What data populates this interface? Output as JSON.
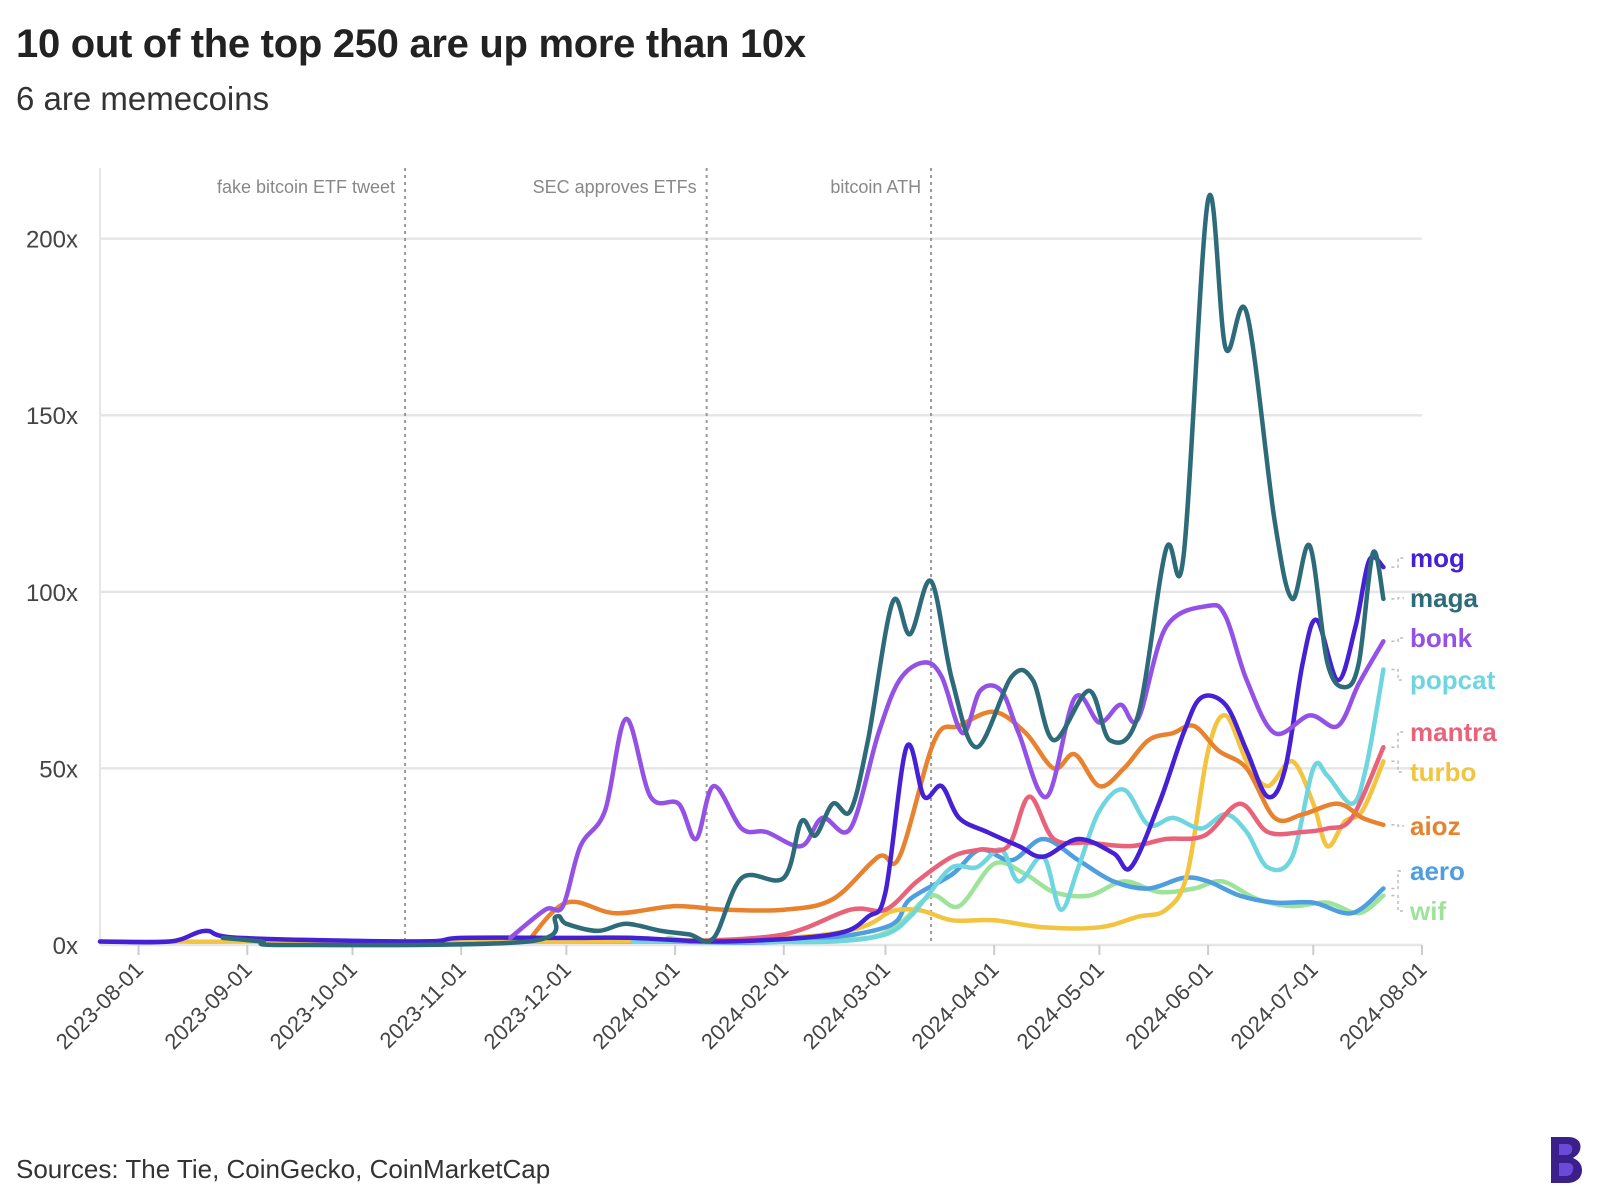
{
  "title": "10 out of the top 250 are up more than 10x",
  "subtitle": "6 are memecoins",
  "source": "Sources: The Tie, CoinGecko, CoinMarketCap",
  "logo_icon": "block-b-logo-icon",
  "chart_data": {
    "type": "line",
    "title": "10 out of the top 250 are up more than 10x",
    "subtitle": "6 are memecoins",
    "xlabel": "",
    "ylabel": "",
    "xlim": [
      "2023-07-21",
      "2024-08-01"
    ],
    "ylim": [
      0,
      220
    ],
    "y_ticks": [
      {
        "value": 0,
        "label": "0x"
      },
      {
        "value": 50,
        "label": "50x"
      },
      {
        "value": 100,
        "label": "100x"
      },
      {
        "value": 150,
        "label": "150x"
      },
      {
        "value": 200,
        "label": "200x"
      }
    ],
    "x_ticks": [
      "2023-08-01",
      "2023-09-01",
      "2023-10-01",
      "2023-11-01",
      "2023-12-01",
      "2024-01-01",
      "2024-02-01",
      "2024-03-01",
      "2024-04-01",
      "2024-05-01",
      "2024-06-01",
      "2024-07-01",
      "2024-08-01"
    ],
    "grid": "horizontal",
    "annotations": [
      {
        "date": "2023-10-16",
        "label": "fake bitcoin ETF tweet"
      },
      {
        "date": "2024-01-10",
        "label": "SEC approves ETFs"
      },
      {
        "date": "2024-03-14",
        "label": "bitcoin ATH"
      }
    ],
    "series": [
      {
        "name": "mog",
        "label": "mog",
        "color": "#4520d4",
        "points": [
          [
            "2023-07-21",
            1
          ],
          [
            "2023-08-10",
            1
          ],
          [
            "2023-08-20",
            4
          ],
          [
            "2023-08-30",
            2
          ],
          [
            "2023-10-20",
            1
          ],
          [
            "2023-11-01",
            2
          ],
          [
            "2023-12-01",
            2
          ],
          [
            "2023-12-20",
            2
          ],
          [
            "2024-01-15",
            1
          ],
          [
            "2024-02-15",
            3
          ],
          [
            "2024-02-25",
            8
          ],
          [
            "2024-03-01",
            15
          ],
          [
            "2024-03-07",
            56
          ],
          [
            "2024-03-12",
            42
          ],
          [
            "2024-03-17",
            45
          ],
          [
            "2024-03-22",
            36
          ],
          [
            "2024-03-30",
            32
          ],
          [
            "2024-04-08",
            28
          ],
          [
            "2024-04-15",
            25
          ],
          [
            "2024-04-25",
            30
          ],
          [
            "2024-05-05",
            26
          ],
          [
            "2024-05-10",
            22
          ],
          [
            "2024-05-18",
            40
          ],
          [
            "2024-05-25",
            60
          ],
          [
            "2024-05-30",
            70
          ],
          [
            "2024-06-06",
            68
          ],
          [
            "2024-06-12",
            55
          ],
          [
            "2024-06-18",
            42
          ],
          [
            "2024-06-23",
            50
          ],
          [
            "2024-06-28",
            80
          ],
          [
            "2024-07-02",
            92
          ],
          [
            "2024-07-08",
            75
          ],
          [
            "2024-07-13",
            90
          ],
          [
            "2024-07-17",
            109
          ],
          [
            "2024-07-21",
            107
          ]
        ]
      },
      {
        "name": "maga",
        "label": "maga",
        "color": "#2e6b7a",
        "points": [
          [
            "2023-08-25",
            2
          ],
          [
            "2023-09-05",
            1
          ],
          [
            "2023-09-12",
            0
          ],
          [
            "2023-11-20",
            1
          ],
          [
            "2023-11-28",
            8
          ],
          [
            "2023-12-01",
            6
          ],
          [
            "2023-12-10",
            4
          ],
          [
            "2023-12-18",
            6
          ],
          [
            "2023-12-28",
            4
          ],
          [
            "2024-01-05",
            3
          ],
          [
            "2024-01-12",
            2
          ],
          [
            "2024-01-20",
            19
          ],
          [
            "2024-02-01",
            19
          ],
          [
            "2024-02-06",
            35
          ],
          [
            "2024-02-10",
            31
          ],
          [
            "2024-02-15",
            40
          ],
          [
            "2024-02-20",
            38
          ],
          [
            "2024-02-25",
            58
          ],
          [
            "2024-03-03",
            97
          ],
          [
            "2024-03-08",
            88
          ],
          [
            "2024-03-14",
            103
          ],
          [
            "2024-03-20",
            75
          ],
          [
            "2024-03-27",
            56
          ],
          [
            "2024-04-06",
            76
          ],
          [
            "2024-04-12",
            75
          ],
          [
            "2024-04-18",
            58
          ],
          [
            "2024-04-28",
            72
          ],
          [
            "2024-05-04",
            58
          ],
          [
            "2024-05-12",
            65
          ],
          [
            "2024-05-20",
            112
          ],
          [
            "2024-05-25",
            110
          ],
          [
            "2024-06-01",
            211
          ],
          [
            "2024-06-06",
            169
          ],
          [
            "2024-06-12",
            179
          ],
          [
            "2024-06-20",
            120
          ],
          [
            "2024-06-25",
            98
          ],
          [
            "2024-06-30",
            113
          ],
          [
            "2024-07-05",
            80
          ],
          [
            "2024-07-10",
            73
          ],
          [
            "2024-07-14",
            80
          ],
          [
            "2024-07-18",
            111
          ],
          [
            "2024-07-21",
            98
          ]
        ]
      },
      {
        "name": "bonk",
        "label": "bonk",
        "color": "#9451e6",
        "points": [
          [
            "2023-11-15",
            2
          ],
          [
            "2023-11-25",
            10
          ],
          [
            "2023-11-30",
            11
          ],
          [
            "2023-12-05",
            28
          ],
          [
            "2023-12-12",
            38
          ],
          [
            "2023-12-18",
            64
          ],
          [
            "2023-12-25",
            42
          ],
          [
            "2024-01-02",
            40
          ],
          [
            "2024-01-07",
            30
          ],
          [
            "2024-01-12",
            45
          ],
          [
            "2024-01-20",
            33
          ],
          [
            "2024-01-27",
            32
          ],
          [
            "2024-02-06",
            28
          ],
          [
            "2024-02-12",
            36
          ],
          [
            "2024-02-20",
            33
          ],
          [
            "2024-02-28",
            60
          ],
          [
            "2024-03-05",
            75
          ],
          [
            "2024-03-12",
            80
          ],
          [
            "2024-03-17",
            76
          ],
          [
            "2024-03-23",
            60
          ],
          [
            "2024-03-28",
            72
          ],
          [
            "2024-04-03",
            72
          ],
          [
            "2024-04-08",
            60
          ],
          [
            "2024-04-16",
            42
          ],
          [
            "2024-04-24",
            70
          ],
          [
            "2024-05-01",
            63
          ],
          [
            "2024-05-07",
            68
          ],
          [
            "2024-05-12",
            64
          ],
          [
            "2024-05-20",
            90
          ],
          [
            "2024-06-01",
            96
          ],
          [
            "2024-06-06",
            93
          ],
          [
            "2024-06-12",
            75
          ],
          [
            "2024-06-20",
            60
          ],
          [
            "2024-06-30",
            65
          ],
          [
            "2024-07-08",
            62
          ],
          [
            "2024-07-14",
            74
          ],
          [
            "2024-07-21",
            86
          ]
        ]
      },
      {
        "name": "popcat",
        "label": "popcat",
        "color": "#6fd6e0",
        "points": [
          [
            "2023-12-20",
            1
          ],
          [
            "2024-01-01",
            1
          ],
          [
            "2024-01-20",
            1
          ],
          [
            "2024-02-15",
            1
          ],
          [
            "2024-03-01",
            3
          ],
          [
            "2024-03-08",
            8
          ],
          [
            "2024-03-13",
            14
          ],
          [
            "2024-03-20",
            22
          ],
          [
            "2024-03-27",
            22
          ],
          [
            "2024-04-03",
            27
          ],
          [
            "2024-04-08",
            18
          ],
          [
            "2024-04-15",
            25
          ],
          [
            "2024-04-20",
            10
          ],
          [
            "2024-04-25",
            22
          ],
          [
            "2024-05-01",
            38
          ],
          [
            "2024-05-08",
            44
          ],
          [
            "2024-05-15",
            34
          ],
          [
            "2024-05-22",
            36
          ],
          [
            "2024-05-30",
            33
          ],
          [
            "2024-06-06",
            37
          ],
          [
            "2024-06-12",
            32
          ],
          [
            "2024-06-18",
            22
          ],
          [
            "2024-06-25",
            25
          ],
          [
            "2024-07-01",
            50
          ],
          [
            "2024-07-05",
            48
          ],
          [
            "2024-07-12",
            40
          ],
          [
            "2024-07-16",
            50
          ],
          [
            "2024-07-21",
            78
          ]
        ]
      },
      {
        "name": "mantra",
        "label": "mantra",
        "color": "#e8637a",
        "points": [
          [
            "2024-01-05",
            1
          ],
          [
            "2024-02-01",
            3
          ],
          [
            "2024-02-20",
            10
          ],
          [
            "2024-03-01",
            10
          ],
          [
            "2024-03-10",
            18
          ],
          [
            "2024-03-20",
            25
          ],
          [
            "2024-03-28",
            27
          ],
          [
            "2024-04-05",
            28
          ],
          [
            "2024-04-11",
            42
          ],
          [
            "2024-04-18",
            30
          ],
          [
            "2024-04-28",
            29
          ],
          [
            "2024-05-10",
            28
          ],
          [
            "2024-05-20",
            30
          ],
          [
            "2024-05-31",
            31
          ],
          [
            "2024-06-10",
            40
          ],
          [
            "2024-06-18",
            32
          ],
          [
            "2024-06-28",
            32
          ],
          [
            "2024-07-05",
            33
          ],
          [
            "2024-07-12",
            36
          ],
          [
            "2024-07-21",
            56
          ]
        ]
      },
      {
        "name": "turbo",
        "label": "turbo",
        "color": "#f2c440",
        "points": [
          [
            "2023-07-21",
            1
          ],
          [
            "2023-08-15",
            1
          ],
          [
            "2023-09-01",
            1
          ],
          [
            "2024-02-01",
            2
          ],
          [
            "2024-03-05",
            10
          ],
          [
            "2024-03-20",
            7
          ],
          [
            "2024-04-01",
            7
          ],
          [
            "2024-04-15",
            5
          ],
          [
            "2024-05-01",
            5
          ],
          [
            "2024-05-12",
            8
          ],
          [
            "2024-05-20",
            10
          ],
          [
            "2024-05-26",
            20
          ],
          [
            "2024-06-01",
            55
          ],
          [
            "2024-06-06",
            65
          ],
          [
            "2024-06-12",
            52
          ],
          [
            "2024-06-18",
            45
          ],
          [
            "2024-06-25",
            52
          ],
          [
            "2024-07-01",
            40
          ],
          [
            "2024-07-05",
            28
          ],
          [
            "2024-07-10",
            35
          ],
          [
            "2024-07-15",
            38
          ],
          [
            "2024-07-21",
            52
          ]
        ]
      },
      {
        "name": "aioz",
        "label": "aioz",
        "color": "#e8822e",
        "points": [
          [
            "2023-11-20",
            1
          ],
          [
            "2023-12-01",
            12
          ],
          [
            "2023-12-15",
            9
          ],
          [
            "2024-01-01",
            11
          ],
          [
            "2024-01-15",
            10
          ],
          [
            "2024-02-01",
            10
          ],
          [
            "2024-02-15",
            13
          ],
          [
            "2024-02-28",
            25
          ],
          [
            "2024-03-05",
            25
          ],
          [
            "2024-03-15",
            58
          ],
          [
            "2024-03-22",
            62
          ],
          [
            "2024-04-01",
            66
          ],
          [
            "2024-04-10",
            60
          ],
          [
            "2024-04-18",
            50
          ],
          [
            "2024-04-24",
            54
          ],
          [
            "2024-05-01",
            45
          ],
          [
            "2024-05-08",
            50
          ],
          [
            "2024-05-15",
            58
          ],
          [
            "2024-05-22",
            60
          ],
          [
            "2024-05-28",
            62
          ],
          [
            "2024-06-04",
            55
          ],
          [
            "2024-06-12",
            50
          ],
          [
            "2024-06-20",
            36
          ],
          [
            "2024-06-28",
            37
          ],
          [
            "2024-07-08",
            40
          ],
          [
            "2024-07-15",
            36
          ],
          [
            "2024-07-21",
            34
          ]
        ]
      },
      {
        "name": "aero",
        "label": "aero",
        "color": "#4e9ee0",
        "points": [
          [
            "2023-09-20",
            1
          ],
          [
            "2023-12-20",
            1
          ],
          [
            "2024-02-01",
            1
          ],
          [
            "2024-03-01",
            5
          ],
          [
            "2024-03-08",
            13
          ],
          [
            "2024-03-20",
            20
          ],
          [
            "2024-03-28",
            27
          ],
          [
            "2024-04-06",
            24
          ],
          [
            "2024-04-15",
            30
          ],
          [
            "2024-04-25",
            24
          ],
          [
            "2024-05-05",
            18
          ],
          [
            "2024-05-15",
            16
          ],
          [
            "2024-05-25",
            19
          ],
          [
            "2024-06-01",
            18
          ],
          [
            "2024-06-10",
            14
          ],
          [
            "2024-06-20",
            12
          ],
          [
            "2024-07-01",
            12
          ],
          [
            "2024-07-12",
            9
          ],
          [
            "2024-07-21",
            16
          ]
        ]
      },
      {
        "name": "wif",
        "label": "wif",
        "color": "#9ee39a",
        "points": [
          [
            "2023-12-30",
            2
          ],
          [
            "2024-01-10",
            1
          ],
          [
            "2024-02-10",
            2
          ],
          [
            "2024-02-25",
            2
          ],
          [
            "2024-03-05",
            6
          ],
          [
            "2024-03-14",
            14
          ],
          [
            "2024-03-22",
            11
          ],
          [
            "2024-04-01",
            23
          ],
          [
            "2024-04-10",
            20
          ],
          [
            "2024-04-18",
            15
          ],
          [
            "2024-04-28",
            14
          ],
          [
            "2024-05-08",
            18
          ],
          [
            "2024-05-18",
            15
          ],
          [
            "2024-05-28",
            16
          ],
          [
            "2024-06-05",
            18
          ],
          [
            "2024-06-15",
            13
          ],
          [
            "2024-06-25",
            11
          ],
          [
            "2024-07-05",
            12
          ],
          [
            "2024-07-14",
            9
          ],
          [
            "2024-07-21",
            14
          ]
        ]
      }
    ]
  }
}
